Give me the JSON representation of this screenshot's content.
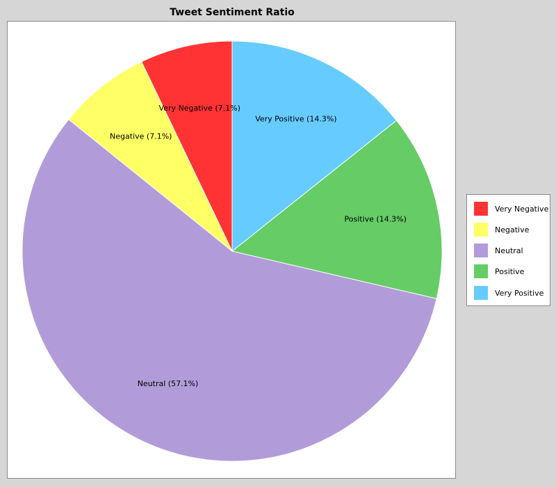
{
  "chart_data": {
    "type": "pie",
    "title": "Tweet Sentiment Ratio",
    "slices": [
      {
        "label": "Very Negative",
        "value": 7.1,
        "slice_label": "Very Negative (7.1%)",
        "color": "#ff3333"
      },
      {
        "label": "Negative",
        "value": 7.1,
        "slice_label": "Negative (7.1%)",
        "color": "#ffff66"
      },
      {
        "label": "Neutral",
        "value": 57.1,
        "slice_label": "Neutral (57.1%)",
        "color": "#b19cd9"
      },
      {
        "label": "Positive",
        "value": 14.3,
        "slice_label": "Positive (14.3%)",
        "color": "#66cc66"
      },
      {
        "label": "Very Positive",
        "value": 14.3,
        "slice_label": "Very Positive (14.3%)",
        "color": "#66ccff"
      }
    ],
    "legend_placement": "right"
  }
}
